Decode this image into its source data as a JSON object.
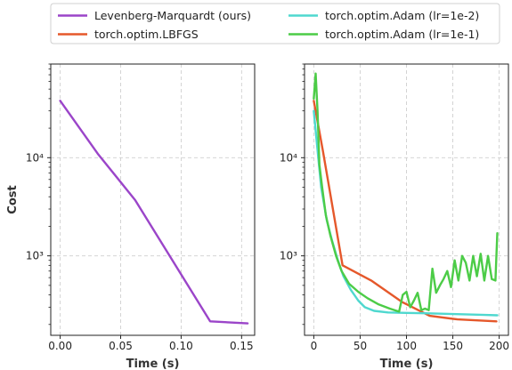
{
  "legend": {
    "placement": "top-center",
    "items": [
      {
        "label": "Levenberg-Marquardt (ours)",
        "color": "#9b45c9"
      },
      {
        "label": "torch.optim.LBFGS",
        "color": "#e5582b"
      },
      {
        "label": "torch.optim.Adam (lr=1e-2)",
        "color": "#4fd8cf"
      },
      {
        "label": "torch.optim.Adam (lr=1e-1)",
        "color": "#4ccc47"
      }
    ]
  },
  "chart_data": [
    {
      "type": "line",
      "xlabel": "Time (s)",
      "ylabel": "Cost",
      "yscale": "log",
      "xlim": [
        -0.0078,
        0.1608
      ],
      "ylim": [
        155,
        90000
      ],
      "xticks": [
        0.0,
        0.05,
        0.1,
        0.15
      ],
      "xtick_labels": [
        "0.00",
        "0.05",
        "0.10",
        "0.15"
      ],
      "yticks": [
        1000,
        10000
      ],
      "ytick_labels": [
        "10³",
        "10⁴"
      ],
      "grid": true,
      "series": [
        {
          "name": "Levenberg-Marquardt (ours)",
          "color": "#9b45c9",
          "x": [
            0.0,
            0.031,
            0.062,
            0.124,
            0.155
          ],
          "y": [
            38000,
            11000,
            3700,
            215,
            205
          ]
        }
      ]
    },
    {
      "type": "line",
      "xlabel": "Time (s)",
      "ylabel": "",
      "yscale": "log",
      "xlim": [
        -10,
        210
      ],
      "ylim": [
        155,
        90000
      ],
      "xticks": [
        0,
        50,
        100,
        150,
        200
      ],
      "xtick_labels": [
        "0",
        "50",
        "100",
        "150",
        "200"
      ],
      "yticks": [
        1000,
        10000
      ],
      "ytick_labels": [
        "10³",
        "10⁴"
      ],
      "grid": true,
      "series": [
        {
          "name": "torch.optim.LBFGS",
          "color": "#e5582b",
          "x": [
            0,
            10,
            31,
            62,
            95,
            125,
            155,
            197
          ],
          "y": [
            38000,
            11500,
            800,
            560,
            340,
            245,
            225,
            215
          ]
        },
        {
          "name": "torch.optim.Adam (lr=1e-2)",
          "color": "#4fd8cf",
          "x": [
            0,
            4,
            8,
            14,
            20,
            26,
            32,
            40,
            48,
            55,
            65,
            80,
            100,
            120,
            150,
            185,
            198
          ],
          "y": [
            30000,
            12000,
            5000,
            2300,
            1400,
            900,
            620,
            450,
            350,
            300,
            275,
            265,
            262,
            260,
            255,
            250,
            248
          ]
        },
        {
          "name": "torch.optim.Adam (lr=1e-1)",
          "color": "#4ccc47",
          "x": [
            0,
            2,
            4,
            6,
            9,
            13,
            18,
            24,
            30,
            38,
            48,
            58,
            70,
            82,
            92,
            96,
            100,
            104,
            108,
            112,
            116,
            120,
            124,
            128,
            132,
            136,
            140,
            144,
            148,
            152,
            156,
            160,
            164,
            168,
            172,
            176,
            180,
            184,
            188,
            192,
            196,
            198
          ],
          "y": [
            40000,
            72000,
            30000,
            8500,
            5000,
            2600,
            1600,
            1000,
            700,
            520,
            430,
            370,
            320,
            290,
            270,
            400,
            430,
            300,
            350,
            420,
            280,
            290,
            280,
            740,
            420,
            500,
            580,
            700,
            480,
            900,
            560,
            1000,
            850,
            560,
            1000,
            620,
            1050,
            560,
            1000,
            580,
            560,
            1700
          ]
        }
      ]
    }
  ]
}
